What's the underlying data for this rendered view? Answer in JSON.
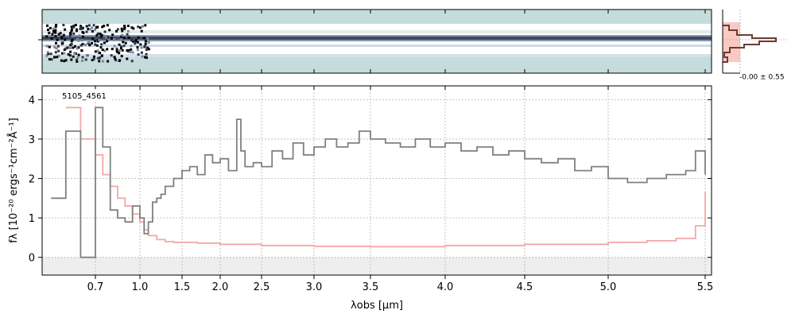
{
  "chart_data": [
    {
      "type": "heatmap",
      "panel": "2d-spectrum",
      "background_color": "#c5dcdc",
      "colormap": "bone_r"
    },
    {
      "type": "line",
      "panel": "1d-spectrum",
      "annotation": "5105_4561",
      "xlabel": "λobs [μm]",
      "ylabel": "fλ [10⁻²⁰ ergs⁻¹cm⁻²Å⁻¹]",
      "xscale": "spectral-warped",
      "xlim": [
        0.52,
        5.53
      ],
      "ylim": [
        -0.45,
        4.35
      ],
      "grid": true,
      "x_ticks": [
        0.7,
        1.0,
        1.5,
        2.0,
        2.5,
        3.0,
        3.5,
        4.0,
        4.5,
        5.0,
        5.5
      ],
      "x_tick_labels": [
        "0.7",
        "1.0",
        "1.5",
        "2.0",
        "2.5",
        "3.0",
        "3.5",
        "4.0",
        "4.5",
        "5.0",
        "5.5"
      ],
      "y_ticks": [
        0,
        1,
        2,
        3,
        4
      ],
      "y_tick_labels": [
        "0",
        "1",
        "2",
        "3",
        "4"
      ],
      "colors": {
        "flux": "#808080",
        "error": "#f4a7a7",
        "zero_band": "#eeeeee"
      },
      "series": [
        {
          "role": "flux",
          "x": [
            0.55,
            0.6,
            0.65,
            0.7,
            0.75,
            0.8,
            0.85,
            0.9,
            0.95,
            1.0,
            1.05,
            1.1,
            1.15,
            1.2,
            1.25,
            1.3,
            1.4,
            1.5,
            1.6,
            1.7,
            1.8,
            1.9,
            2.0,
            2.1,
            2.2,
            2.25,
            2.3,
            2.4,
            2.5,
            2.6,
            2.7,
            2.8,
            2.9,
            3.0,
            3.1,
            3.2,
            3.3,
            3.4,
            3.5,
            3.6,
            3.7,
            3.8,
            3.9,
            4.0,
            4.1,
            4.2,
            4.3,
            4.4,
            4.5,
            4.6,
            4.7,
            4.8,
            4.9,
            5.0,
            5.1,
            5.2,
            5.3,
            5.4,
            5.45,
            5.5
          ],
          "y": [
            1.5,
            3.2,
            0.0,
            3.8,
            2.8,
            1.2,
            1.0,
            0.9,
            1.3,
            1.0,
            0.6,
            0.9,
            1.4,
            1.5,
            1.6,
            1.8,
            2.0,
            2.2,
            2.3,
            2.1,
            2.6,
            2.4,
            2.5,
            2.2,
            3.5,
            2.7,
            2.3,
            2.4,
            2.3,
            2.7,
            2.5,
            2.9,
            2.6,
            2.8,
            3.0,
            2.8,
            2.9,
            3.2,
            3.0,
            2.9,
            2.8,
            3.0,
            2.8,
            2.9,
            2.7,
            2.8,
            2.6,
            2.7,
            2.5,
            2.4,
            2.5,
            2.2,
            2.3,
            2.0,
            1.9,
            2.0,
            2.1,
            2.2,
            2.7,
            2.1
          ]
        },
        {
          "role": "error",
          "x": [
            0.6,
            0.65,
            0.7,
            0.75,
            0.8,
            0.85,
            0.9,
            0.95,
            1.0,
            1.05,
            1.1,
            1.2,
            1.3,
            1.4,
            1.5,
            1.7,
            2.0,
            2.5,
            3.0,
            3.5,
            4.0,
            4.5,
            5.0,
            5.2,
            5.35,
            5.45,
            5.5
          ],
          "y": [
            3.8,
            3.0,
            2.6,
            2.1,
            1.8,
            1.5,
            1.3,
            1.1,
            0.9,
            0.7,
            0.55,
            0.45,
            0.4,
            0.38,
            0.38,
            0.36,
            0.33,
            0.3,
            0.28,
            0.27,
            0.3,
            0.33,
            0.38,
            0.42,
            0.48,
            0.8,
            1.65
          ]
        }
      ]
    },
    {
      "type": "histogram",
      "panel": "pixel-histogram",
      "annotation": "-0.00 ± 0.55"
    }
  ]
}
